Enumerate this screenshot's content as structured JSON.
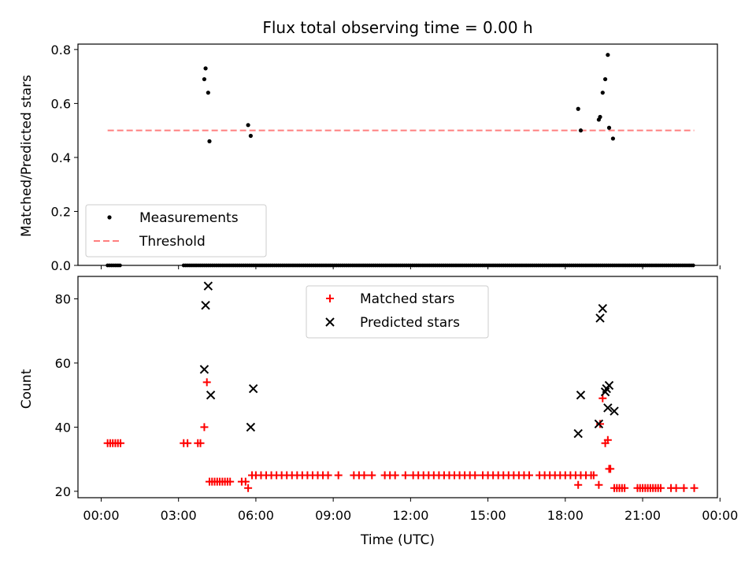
{
  "chart_data": [
    {
      "type": "scatter",
      "title": "Flux total observing time = 0.00 h",
      "xlabel": "",
      "ylabel": "Matched/Predicted stars",
      "xlim": [
        -0.9,
        23.9
      ],
      "ylim": [
        0,
        0.82
      ],
      "yticks": [
        0.0,
        0.2,
        0.4,
        0.6,
        0.8
      ],
      "ytick_labels": [
        "0.0",
        "0.2",
        "0.4",
        "0.6",
        "0.8"
      ],
      "grid": false,
      "legend": {
        "placement": "lower-left",
        "entries": [
          {
            "label": "Measurements",
            "marker": "dot",
            "color": "#000000"
          },
          {
            "label": "Threshold",
            "marker": "dashed-line",
            "color": "#ff7f7f"
          }
        ]
      },
      "threshold": {
        "value": 0.5,
        "x_range": [
          0.25,
          23.0
        ],
        "color": "#ff7f7f"
      },
      "series": [
        {
          "name": "Measurements",
          "color": "#000000",
          "points": [
            [
              4.0,
              0.69
            ],
            [
              4.05,
              0.73
            ],
            [
              4.15,
              0.64
            ],
            [
              4.2,
              0.46
            ],
            [
              5.7,
              0.52
            ],
            [
              5.8,
              0.48
            ],
            [
              18.5,
              0.58
            ],
            [
              18.6,
              0.5
            ],
            [
              19.3,
              0.54
            ],
            [
              19.35,
              0.55
            ],
            [
              19.45,
              0.64
            ],
            [
              19.55,
              0.69
            ],
            [
              19.65,
              0.78
            ],
            [
              19.7,
              0.51
            ],
            [
              19.85,
              0.47
            ]
          ],
          "zero_ranges": [
            [
              0.25,
              0.75
            ],
            [
              3.2,
              23.0
            ]
          ]
        }
      ]
    },
    {
      "type": "scatter",
      "title": "",
      "xlabel": "Time (UTC)",
      "ylabel": "Count",
      "xlim": [
        -0.9,
        23.9
      ],
      "ylim": [
        18,
        87
      ],
      "yticks": [
        20,
        40,
        60,
        80
      ],
      "ytick_labels": [
        "20",
        "40",
        "60",
        "80"
      ],
      "xticks": [
        0,
        3,
        6,
        9,
        12,
        15,
        18,
        21,
        24
      ],
      "xtick_labels": [
        "00:00",
        "03:00",
        "06:00",
        "09:00",
        "12:00",
        "15:00",
        "18:00",
        "21:00",
        "00:00"
      ],
      "grid": false,
      "legend": {
        "placement": "upper-center",
        "entries": [
          {
            "label": "Matched stars",
            "marker": "plus",
            "color": "#ff0000"
          },
          {
            "label": "Predicted stars",
            "marker": "x",
            "color": "#000000"
          }
        ]
      },
      "series": [
        {
          "name": "Matched stars",
          "color": "#ff0000",
          "points": [
            [
              0.25,
              35
            ],
            [
              0.35,
              35
            ],
            [
              0.45,
              35
            ],
            [
              0.55,
              35
            ],
            [
              0.65,
              35
            ],
            [
              0.75,
              35
            ],
            [
              3.2,
              35
            ],
            [
              3.35,
              35
            ],
            [
              3.75,
              35
            ],
            [
              3.85,
              35
            ],
            [
              4.0,
              40
            ],
            [
              4.1,
              54
            ],
            [
              4.2,
              23
            ],
            [
              4.3,
              23
            ],
            [
              4.4,
              23
            ],
            [
              4.5,
              23
            ],
            [
              4.6,
              23
            ],
            [
              4.7,
              23
            ],
            [
              4.8,
              23
            ],
            [
              4.9,
              23
            ],
            [
              5.0,
              23
            ],
            [
              5.45,
              23
            ],
            [
              5.6,
              23
            ],
            [
              5.7,
              21
            ],
            [
              5.85,
              25
            ],
            [
              6.0,
              25
            ],
            [
              6.2,
              25
            ],
            [
              6.4,
              25
            ],
            [
              6.6,
              25
            ],
            [
              6.8,
              25
            ],
            [
              7.0,
              25
            ],
            [
              7.2,
              25
            ],
            [
              7.4,
              25
            ],
            [
              7.6,
              25
            ],
            [
              7.8,
              25
            ],
            [
              8.0,
              25
            ],
            [
              8.2,
              25
            ],
            [
              8.4,
              25
            ],
            [
              8.6,
              25
            ],
            [
              8.8,
              25
            ],
            [
              9.2,
              25
            ],
            [
              9.8,
              25
            ],
            [
              10.0,
              25
            ],
            [
              10.2,
              25
            ],
            [
              10.5,
              25
            ],
            [
              11.0,
              25
            ],
            [
              11.2,
              25
            ],
            [
              11.4,
              25
            ],
            [
              11.8,
              25
            ],
            [
              12.1,
              25
            ],
            [
              12.3,
              25
            ],
            [
              12.5,
              25
            ],
            [
              12.7,
              25
            ],
            [
              12.9,
              25
            ],
            [
              13.1,
              25
            ],
            [
              13.3,
              25
            ],
            [
              13.5,
              25
            ],
            [
              13.7,
              25
            ],
            [
              13.9,
              25
            ],
            [
              14.1,
              25
            ],
            [
              14.3,
              25
            ],
            [
              14.5,
              25
            ],
            [
              14.8,
              25
            ],
            [
              15.0,
              25
            ],
            [
              15.2,
              25
            ],
            [
              15.4,
              25
            ],
            [
              15.6,
              25
            ],
            [
              15.8,
              25
            ],
            [
              16.0,
              25
            ],
            [
              16.2,
              25
            ],
            [
              16.4,
              25
            ],
            [
              16.6,
              25
            ],
            [
              17.0,
              25
            ],
            [
              17.2,
              25
            ],
            [
              17.4,
              25
            ],
            [
              17.6,
              25
            ],
            [
              17.8,
              25
            ],
            [
              18.0,
              25
            ],
            [
              18.2,
              25
            ],
            [
              18.4,
              25
            ],
            [
              18.5,
              22
            ],
            [
              18.6,
              25
            ],
            [
              18.8,
              25
            ],
            [
              19.0,
              25
            ],
            [
              19.1,
              25
            ],
            [
              19.3,
              22
            ],
            [
              19.35,
              41
            ],
            [
              19.45,
              49
            ],
            [
              19.55,
              35
            ],
            [
              19.65,
              36
            ],
            [
              19.7,
              27
            ],
            [
              19.75,
              27
            ],
            [
              19.9,
              21
            ],
            [
              20.0,
              21
            ],
            [
              20.1,
              21
            ],
            [
              20.2,
              21
            ],
            [
              20.3,
              21
            ],
            [
              20.8,
              21
            ],
            [
              20.9,
              21
            ],
            [
              21.0,
              21
            ],
            [
              21.1,
              21
            ],
            [
              21.2,
              21
            ],
            [
              21.3,
              21
            ],
            [
              21.4,
              21
            ],
            [
              21.5,
              21
            ],
            [
              21.6,
              21
            ],
            [
              21.7,
              21
            ],
            [
              22.1,
              21
            ],
            [
              22.3,
              21
            ],
            [
              22.6,
              21
            ],
            [
              23.0,
              21
            ]
          ]
        },
        {
          "name": "Predicted stars",
          "color": "#000000",
          "points": [
            [
              4.0,
              58
            ],
            [
              4.05,
              78
            ],
            [
              4.15,
              84
            ],
            [
              4.25,
              50
            ],
            [
              5.8,
              40
            ],
            [
              5.9,
              52
            ],
            [
              18.5,
              38
            ],
            [
              18.6,
              50
            ],
            [
              19.3,
              41
            ],
            [
              19.35,
              74
            ],
            [
              19.45,
              77
            ],
            [
              19.55,
              51
            ],
            [
              19.6,
              52
            ],
            [
              19.7,
              53
            ],
            [
              19.65,
              46
            ],
            [
              19.9,
              45
            ]
          ]
        }
      ]
    }
  ]
}
